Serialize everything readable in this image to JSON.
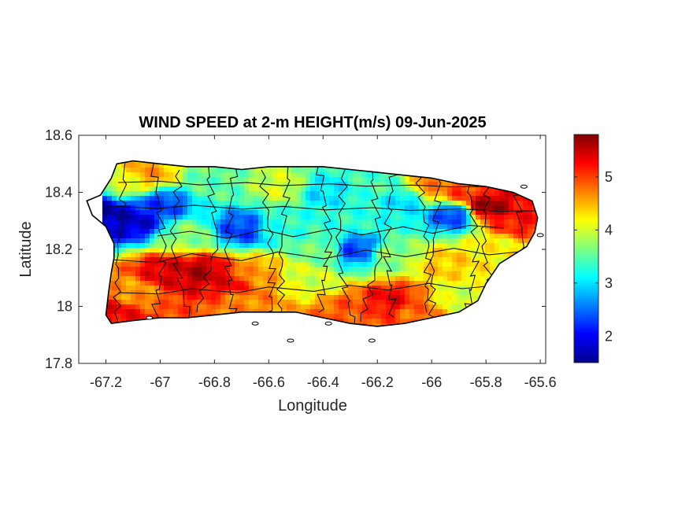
{
  "chart_data": {
    "type": "heatmap",
    "title": "WIND SPEED at 2-m HEIGHT(m/s) 09-Jun-2025",
    "xlabel": "Longitude",
    "ylabel": "Latitude",
    "xlim": [
      -67.3,
      -65.58
    ],
    "ylim": [
      17.8,
      18.6
    ],
    "xticks": [
      -67.2,
      -67,
      -66.8,
      -66.6,
      -66.4,
      -66.2,
      -66,
      -65.8,
      -65.6
    ],
    "xtick_labels": [
      "-67.2",
      "-67",
      "-66.8",
      "-66.6",
      "-66.4",
      "-66.2",
      "-66",
      "-65.8",
      "-65.6"
    ],
    "yticks": [
      17.8,
      18,
      18.2,
      18.4,
      18.6
    ],
    "ytick_labels": [
      "17.8",
      "18",
      "18.2",
      "18.4",
      "18.6"
    ],
    "colorbar": {
      "colormap": "jet",
      "clim": [
        1.5,
        5.8
      ],
      "ticks": [
        2,
        3,
        4,
        5
      ],
      "tick_labels": [
        "2",
        "3",
        "4",
        "5"
      ]
    },
    "outline": [
      [
        -67.27,
        18.37
      ],
      [
        -67.22,
        18.39
      ],
      [
        -67.18,
        18.45
      ],
      [
        -67.16,
        18.5
      ],
      [
        -67.1,
        18.51
      ],
      [
        -67.0,
        18.5
      ],
      [
        -66.9,
        18.49
      ],
      [
        -66.8,
        18.49
      ],
      [
        -66.7,
        18.48
      ],
      [
        -66.6,
        18.49
      ],
      [
        -66.5,
        18.49
      ],
      [
        -66.4,
        18.49
      ],
      [
        -66.3,
        18.48
      ],
      [
        -66.2,
        18.47
      ],
      [
        -66.1,
        18.46
      ],
      [
        -66.0,
        18.45
      ],
      [
        -65.9,
        18.43
      ],
      [
        -65.8,
        18.42
      ],
      [
        -65.7,
        18.4
      ],
      [
        -65.63,
        18.37
      ],
      [
        -65.61,
        18.31
      ],
      [
        -65.62,
        18.26
      ],
      [
        -65.65,
        18.21
      ],
      [
        -65.7,
        18.18
      ],
      [
        -65.75,
        18.15
      ],
      [
        -65.8,
        18.08
      ],
      [
        -65.83,
        18.02
      ],
      [
        -65.9,
        17.98
      ],
      [
        -66.0,
        17.96
      ],
      [
        -66.1,
        17.94
      ],
      [
        -66.2,
        17.93
      ],
      [
        -66.3,
        17.94
      ],
      [
        -66.4,
        17.96
      ],
      [
        -66.5,
        17.98
      ],
      [
        -66.6,
        17.98
      ],
      [
        -66.7,
        17.98
      ],
      [
        -66.8,
        17.97
      ],
      [
        -66.9,
        17.96
      ],
      [
        -67.0,
        17.96
      ],
      [
        -67.1,
        17.95
      ],
      [
        -67.18,
        17.94
      ],
      [
        -67.2,
        17.97
      ],
      [
        -67.19,
        18.05
      ],
      [
        -67.18,
        18.12
      ],
      [
        -67.17,
        18.17
      ],
      [
        -67.17,
        18.22
      ],
      [
        -67.2,
        18.28
      ],
      [
        -67.25,
        18.32
      ],
      [
        -67.27,
        18.37
      ]
    ],
    "field_centers": [
      [
        -67.22,
        18.33,
        1.6
      ],
      [
        -67.1,
        18.3,
        1.8
      ],
      [
        -67.0,
        18.36,
        2.3
      ],
      [
        -66.7,
        18.27,
        2.3
      ],
      [
        -66.28,
        18.2,
        2.3
      ],
      [
        -65.92,
        18.32,
        2.3
      ],
      [
        -66.55,
        18.28,
        3.3
      ],
      [
        -66.4,
        18.4,
        3.0
      ],
      [
        -66.1,
        18.37,
        3.0
      ],
      [
        -66.3,
        18.3,
        3.3
      ],
      [
        -66.8,
        18.43,
        3.5
      ],
      [
        -66.9,
        18.25,
        3.7
      ],
      [
        -67.05,
        18.46,
        4.6
      ],
      [
        -67.12,
        18.43,
        4.0
      ],
      [
        -66.85,
        18.12,
        5.6
      ],
      [
        -66.98,
        18.12,
        5.4
      ],
      [
        -67.1,
        18.05,
        4.6
      ],
      [
        -67.17,
        17.98,
        5.3
      ],
      [
        -66.75,
        18.08,
        5.3
      ],
      [
        -66.7,
        18.02,
        4.7
      ],
      [
        -66.45,
        18.1,
        4.0
      ],
      [
        -66.3,
        17.98,
        4.9
      ],
      [
        -66.15,
        18.02,
        5.3
      ],
      [
        -66.05,
        17.98,
        4.8
      ],
      [
        -65.8,
        18.35,
        5.7
      ],
      [
        -65.88,
        18.4,
        5.0
      ],
      [
        -66.0,
        18.42,
        4.7
      ],
      [
        -65.68,
        18.3,
        5.2
      ],
      [
        -65.75,
        18.2,
        4.2
      ],
      [
        -65.95,
        18.15,
        4.4
      ],
      [
        -65.9,
        18.03,
        4.0
      ],
      [
        -66.55,
        18.42,
        4.0
      ],
      [
        -66.2,
        18.43,
        3.4
      ],
      [
        -66.65,
        18.12,
        4.6
      ],
      [
        -66.4,
        18.2,
        3.6
      ],
      [
        -66.15,
        18.18,
        3.7
      ]
    ],
    "islets": [
      [
        -66.22,
        17.88
      ],
      [
        -66.52,
        17.88
      ],
      [
        -66.65,
        17.94
      ],
      [
        -67.04,
        17.96
      ],
      [
        -66.38,
        17.94
      ],
      [
        -65.6,
        18.25
      ],
      [
        -65.66,
        18.42
      ]
    ]
  }
}
